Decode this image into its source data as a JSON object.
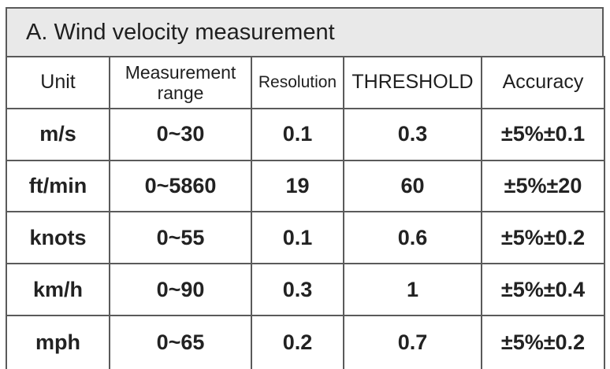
{
  "section": {
    "title": "A.  Wind velocity measurement"
  },
  "table": {
    "headers": {
      "unit": "Unit",
      "range": "Measurement range",
      "resolution": "Resolution",
      "threshold": "THRESHOLD",
      "accuracy": "Accuracy"
    },
    "rows": [
      {
        "unit": "m/s",
        "range": "0~30",
        "resolution": "0.1",
        "threshold": "0.3",
        "accuracy": "±5%±0.1"
      },
      {
        "unit": "ft/min",
        "range": "0~5860",
        "resolution": "19",
        "threshold": "60",
        "accuracy": "±5%±20"
      },
      {
        "unit": "knots",
        "range": "0~55",
        "resolution": "0.1",
        "threshold": "0.6",
        "accuracy": "±5%±0.2"
      },
      {
        "unit": "km/h",
        "range": "0~90",
        "resolution": "0.3",
        "threshold": "1",
        "accuracy": "±5%±0.4"
      },
      {
        "unit": "mph",
        "range": "0~65",
        "resolution": "0.2",
        "threshold": "0.7",
        "accuracy": "±5%±0.2"
      }
    ]
  }
}
